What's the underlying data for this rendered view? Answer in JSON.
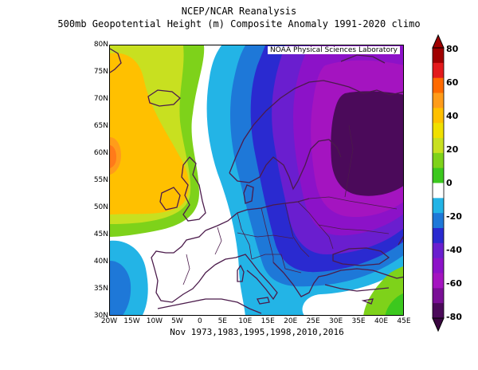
{
  "header": {
    "title": "NCEP/NCAR Reanalysis",
    "subtitle": "500mb Geopotential Height (m) Composite Anomaly 1991-2020 climo"
  },
  "map": {
    "credit": "NOAA Physical Sciences Laboratory",
    "variable": "500mb geopotential height anomaly",
    "units": "m",
    "lat_labels": [
      "80N",
      "75N",
      "70N",
      "65N",
      "60N",
      "55N",
      "50N",
      "45N",
      "40N",
      "35N",
      "30N"
    ],
    "lon_labels": [
      "20W",
      "15W",
      "10W",
      "5W",
      "0",
      "5E",
      "10E",
      "15E",
      "20E",
      "25E",
      "30E",
      "35E",
      "40E",
      "45E"
    ],
    "extent": {
      "lon_min": -20,
      "lon_max": 45,
      "lat_min": 30,
      "lat_max": 80
    },
    "features": [
      {
        "name": "positive anomaly",
        "region": "North Atlantic west of British Isles",
        "peak": 60
      },
      {
        "name": "negative anomaly",
        "region": "Northwest Russia / Scandinavia",
        "peak": -80
      },
      {
        "name": "negative anomaly",
        "region": "Southwest of Iberia",
        "peak": -20
      },
      {
        "name": "positive anomaly",
        "region": "Eastern Mediterranean",
        "peak": 20
      }
    ]
  },
  "colorbar": {
    "labels": [
      "80",
      "60",
      "40",
      "20",
      "0",
      "-20",
      "-40",
      "-60",
      "-80"
    ],
    "colors": [
      "#a00000",
      "#e31a1c",
      "#ff6a00",
      "#ff9c1a",
      "#ffc000",
      "#f0e000",
      "#c8e020",
      "#7ed21a",
      "#3cc81e",
      "#ffffff",
      "#23b4e6",
      "#1e78d8",
      "#2a2ad0",
      "#6a1ecf",
      "#8c12c8",
      "#a414c0",
      "#7a0f96",
      "#4b0a5a"
    ]
  },
  "footer": {
    "caption": "Nov 1973,1983,1995,1998,2010,2016"
  }
}
